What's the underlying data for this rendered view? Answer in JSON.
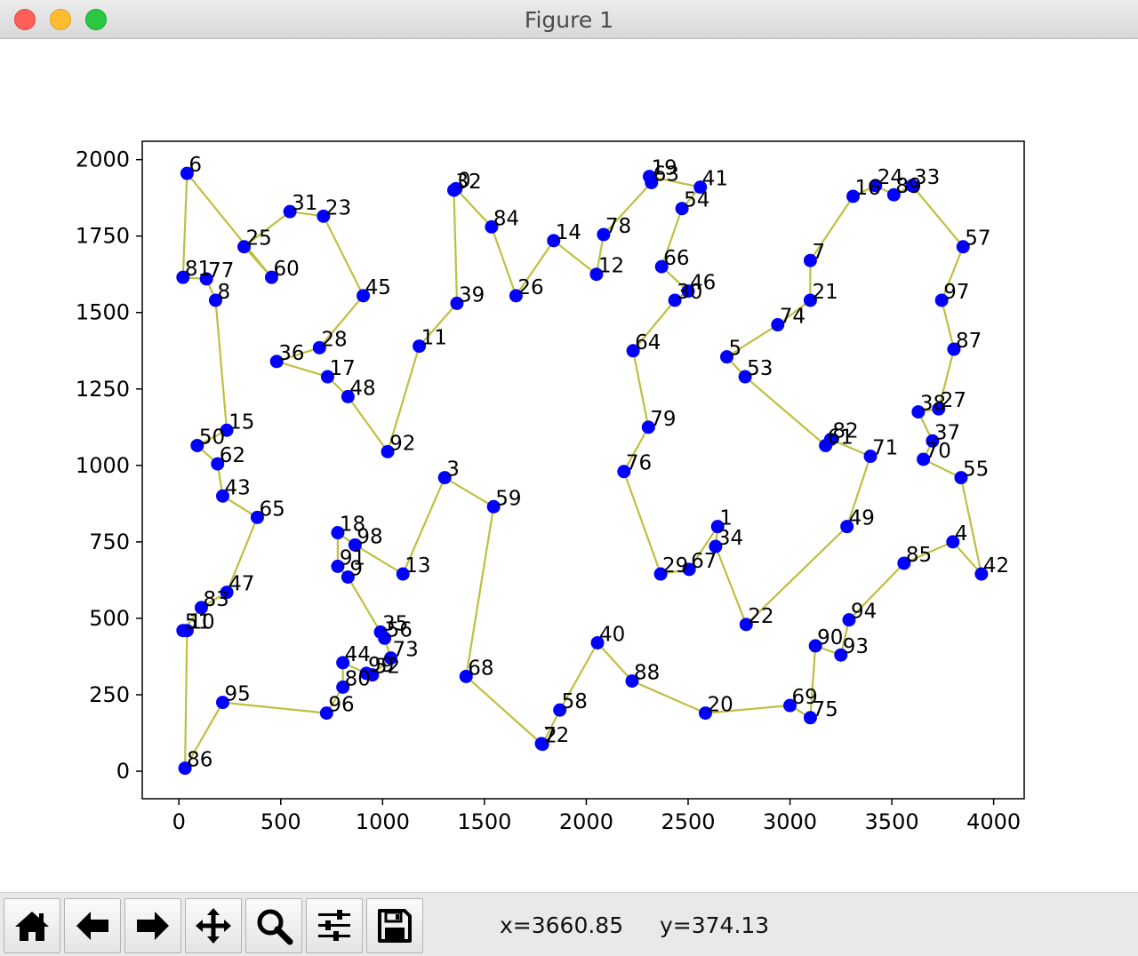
{
  "window": {
    "title": "Figure 1"
  },
  "toolbar": {
    "buttons": [
      {
        "name": "home-button",
        "icon": "home-icon"
      },
      {
        "name": "back-button",
        "icon": "back-arrow-icon"
      },
      {
        "name": "forward-button",
        "icon": "forward-arrow-icon"
      },
      {
        "name": "pan-button",
        "icon": "move-icon"
      },
      {
        "name": "zoom-button",
        "icon": "zoom-icon"
      },
      {
        "name": "subplots-button",
        "icon": "sliders-icon"
      },
      {
        "name": "save-button",
        "icon": "save-icon"
      }
    ],
    "x_readout": "x=3660.85",
    "y_readout": "y=374.13"
  },
  "chart_data": {
    "type": "scatter",
    "title": "",
    "xlabel": "",
    "ylabel": "",
    "xlim": [
      -180,
      4150
    ],
    "ylim": [
      -90,
      2060
    ],
    "xticks": [
      0,
      500,
      1000,
      1500,
      2000,
      2500,
      3000,
      3500,
      4000
    ],
    "yticks": [
      0,
      250,
      500,
      750,
      1000,
      1250,
      1500,
      1750,
      2000
    ],
    "grid": false,
    "point_color": "#0000ff",
    "line_color": "#bfbf3f",
    "points": [
      {
        "id": "0",
        "x": 1360,
        "y": 1905
      },
      {
        "id": "1",
        "x": 2645,
        "y": 800
      },
      {
        "id": "2",
        "x": 1785,
        "y": 88
      },
      {
        "id": "3",
        "x": 1305,
        "y": 960
      },
      {
        "id": "4",
        "x": 3800,
        "y": 750
      },
      {
        "id": "5",
        "x": 2690,
        "y": 1355
      },
      {
        "id": "6",
        "x": 40,
        "y": 1955
      },
      {
        "id": "7",
        "x": 3100,
        "y": 1670
      },
      {
        "id": "8",
        "x": 180,
        "y": 1540
      },
      {
        "id": "9",
        "x": 830,
        "y": 635
      },
      {
        "id": "10",
        "x": 40,
        "y": 460
      },
      {
        "id": "11",
        "x": 1180,
        "y": 1390
      },
      {
        "id": "12",
        "x": 2050,
        "y": 1625
      },
      {
        "id": "13",
        "x": 1100,
        "y": 645
      },
      {
        "id": "14",
        "x": 1840,
        "y": 1735
      },
      {
        "id": "15",
        "x": 235,
        "y": 1115
      },
      {
        "id": "16",
        "x": 3310,
        "y": 1880
      },
      {
        "id": "17",
        "x": 730,
        "y": 1290
      },
      {
        "id": "18",
        "x": 780,
        "y": 780
      },
      {
        "id": "19",
        "x": 2310,
        "y": 1945
      },
      {
        "id": "20",
        "x": 2585,
        "y": 190
      },
      {
        "id": "21",
        "x": 3100,
        "y": 1540
      },
      {
        "id": "22",
        "x": 2785,
        "y": 480
      },
      {
        "id": "23",
        "x": 710,
        "y": 1815
      },
      {
        "id": "24",
        "x": 3420,
        "y": 1915
      },
      {
        "id": "25",
        "x": 320,
        "y": 1715
      },
      {
        "id": "26",
        "x": 1655,
        "y": 1555
      },
      {
        "id": "27",
        "x": 3730,
        "y": 1185
      },
      {
        "id": "28",
        "x": 690,
        "y": 1385
      },
      {
        "id": "29",
        "x": 2365,
        "y": 645
      },
      {
        "id": "30",
        "x": 2435,
        "y": 1540
      },
      {
        "id": "31",
        "x": 545,
        "y": 1830
      },
      {
        "id": "32",
        "x": 1350,
        "y": 1900
      },
      {
        "id": "33",
        "x": 3600,
        "y": 1915
      },
      {
        "id": "34",
        "x": 2635,
        "y": 735
      },
      {
        "id": "35",
        "x": 990,
        "y": 455
      },
      {
        "id": "36",
        "x": 480,
        "y": 1340
      },
      {
        "id": "37",
        "x": 3700,
        "y": 1080
      },
      {
        "id": "38",
        "x": 3630,
        "y": 1175
      },
      {
        "id": "39",
        "x": 1365,
        "y": 1530
      },
      {
        "id": "40",
        "x": 2055,
        "y": 420
      },
      {
        "id": "41",
        "x": 2560,
        "y": 1910
      },
      {
        "id": "42",
        "x": 3940,
        "y": 645
      },
      {
        "id": "43",
        "x": 215,
        "y": 900
      },
      {
        "id": "44",
        "x": 805,
        "y": 355
      },
      {
        "id": "45",
        "x": 905,
        "y": 1555
      },
      {
        "id": "46",
        "x": 2500,
        "y": 1570
      },
      {
        "id": "47",
        "x": 235,
        "y": 585
      },
      {
        "id": "48",
        "x": 830,
        "y": 1225
      },
      {
        "id": "49",
        "x": 3280,
        "y": 800
      },
      {
        "id": "50",
        "x": 90,
        "y": 1065
      },
      {
        "id": "51",
        "x": 20,
        "y": 460
      },
      {
        "id": "52",
        "x": 950,
        "y": 315
      },
      {
        "id": "53",
        "x": 2780,
        "y": 1290
      },
      {
        "id": "54",
        "x": 2470,
        "y": 1840
      },
      {
        "id": "55",
        "x": 3840,
        "y": 960
      },
      {
        "id": "56",
        "x": 1010,
        "y": 435
      },
      {
        "id": "57",
        "x": 3850,
        "y": 1715
      },
      {
        "id": "58",
        "x": 1870,
        "y": 200
      },
      {
        "id": "59",
        "x": 1545,
        "y": 865
      },
      {
        "id": "60",
        "x": 455,
        "y": 1615
      },
      {
        "id": "61",
        "x": 3175,
        "y": 1065
      },
      {
        "id": "62",
        "x": 190,
        "y": 1005
      },
      {
        "id": "63",
        "x": 2320,
        "y": 1925
      },
      {
        "id": "64",
        "x": 2230,
        "y": 1375
      },
      {
        "id": "65",
        "x": 385,
        "y": 830
      },
      {
        "id": "66",
        "x": 2370,
        "y": 1650
      },
      {
        "id": "67",
        "x": 2505,
        "y": 660
      },
      {
        "id": "68",
        "x": 1410,
        "y": 310
      },
      {
        "id": "69",
        "x": 3000,
        "y": 215
      },
      {
        "id": "70",
        "x": 3655,
        "y": 1020
      },
      {
        "id": "71",
        "x": 3395,
        "y": 1030
      },
      {
        "id": "72",
        "x": 1780,
        "y": 90
      },
      {
        "id": "73",
        "x": 1040,
        "y": 370
      },
      {
        "id": "74",
        "x": 2940,
        "y": 1460
      },
      {
        "id": "75",
        "x": 3100,
        "y": 175
      },
      {
        "id": "76",
        "x": 2185,
        "y": 980
      },
      {
        "id": "77",
        "x": 135,
        "y": 1610
      },
      {
        "id": "78",
        "x": 2085,
        "y": 1755
      },
      {
        "id": "79",
        "x": 2305,
        "y": 1125
      },
      {
        "id": "80",
        "x": 805,
        "y": 275
      },
      {
        "id": "81",
        "x": 20,
        "y": 1615
      },
      {
        "id": "82",
        "x": 3200,
        "y": 1085
      },
      {
        "id": "83",
        "x": 110,
        "y": 535
      },
      {
        "id": "84",
        "x": 1535,
        "y": 1780
      },
      {
        "id": "85",
        "x": 3560,
        "y": 680
      },
      {
        "id": "86",
        "x": 30,
        "y": 10
      },
      {
        "id": "87",
        "x": 3805,
        "y": 1380
      },
      {
        "id": "88",
        "x": 2225,
        "y": 295
      },
      {
        "id": "89",
        "x": 3510,
        "y": 1885
      },
      {
        "id": "90",
        "x": 3125,
        "y": 410
      },
      {
        "id": "91",
        "x": 780,
        "y": 670
      },
      {
        "id": "92",
        "x": 1025,
        "y": 1045
      },
      {
        "id": "93",
        "x": 3250,
        "y": 380
      },
      {
        "id": "94",
        "x": 3290,
        "y": 495
      },
      {
        "id": "95",
        "x": 215,
        "y": 225
      },
      {
        "id": "96",
        "x": 725,
        "y": 190
      },
      {
        "id": "97",
        "x": 3745,
        "y": 1540
      },
      {
        "id": "98",
        "x": 865,
        "y": 740
      },
      {
        "id": "99",
        "x": 920,
        "y": 320
      }
    ],
    "tour": [
      "0",
      "84",
      "26",
      "14",
      "12",
      "78",
      "63",
      "19",
      "41",
      "54",
      "66",
      "46",
      "30",
      "64",
      "79",
      "76",
      "29",
      "67",
      "1",
      "34",
      "22",
      "49",
      "71",
      "82",
      "61",
      "53",
      "5",
      "74",
      "21",
      "7",
      "16",
      "24",
      "89",
      "33",
      "57",
      "97",
      "87",
      "27",
      "38",
      "37",
      "70",
      "55",
      "42",
      "4",
      "85",
      "94",
      "93",
      "90",
      "75",
      "69",
      "20",
      "88",
      "40",
      "58",
      "2",
      "72",
      "68",
      "59",
      "3",
      "13",
      "98",
      "18",
      "91",
      "9",
      "35",
      "56",
      "73",
      "52",
      "99",
      "44",
      "80",
      "96",
      "95",
      "86",
      "10",
      "51",
      "83",
      "47",
      "65",
      "43",
      "62",
      "50",
      "15",
      "8",
      "77",
      "81",
      "6",
      "60",
      "25",
      "31",
      "23",
      "45",
      "28",
      "36",
      "17",
      "48",
      "92",
      "11",
      "39",
      "32",
      "0"
    ]
  }
}
